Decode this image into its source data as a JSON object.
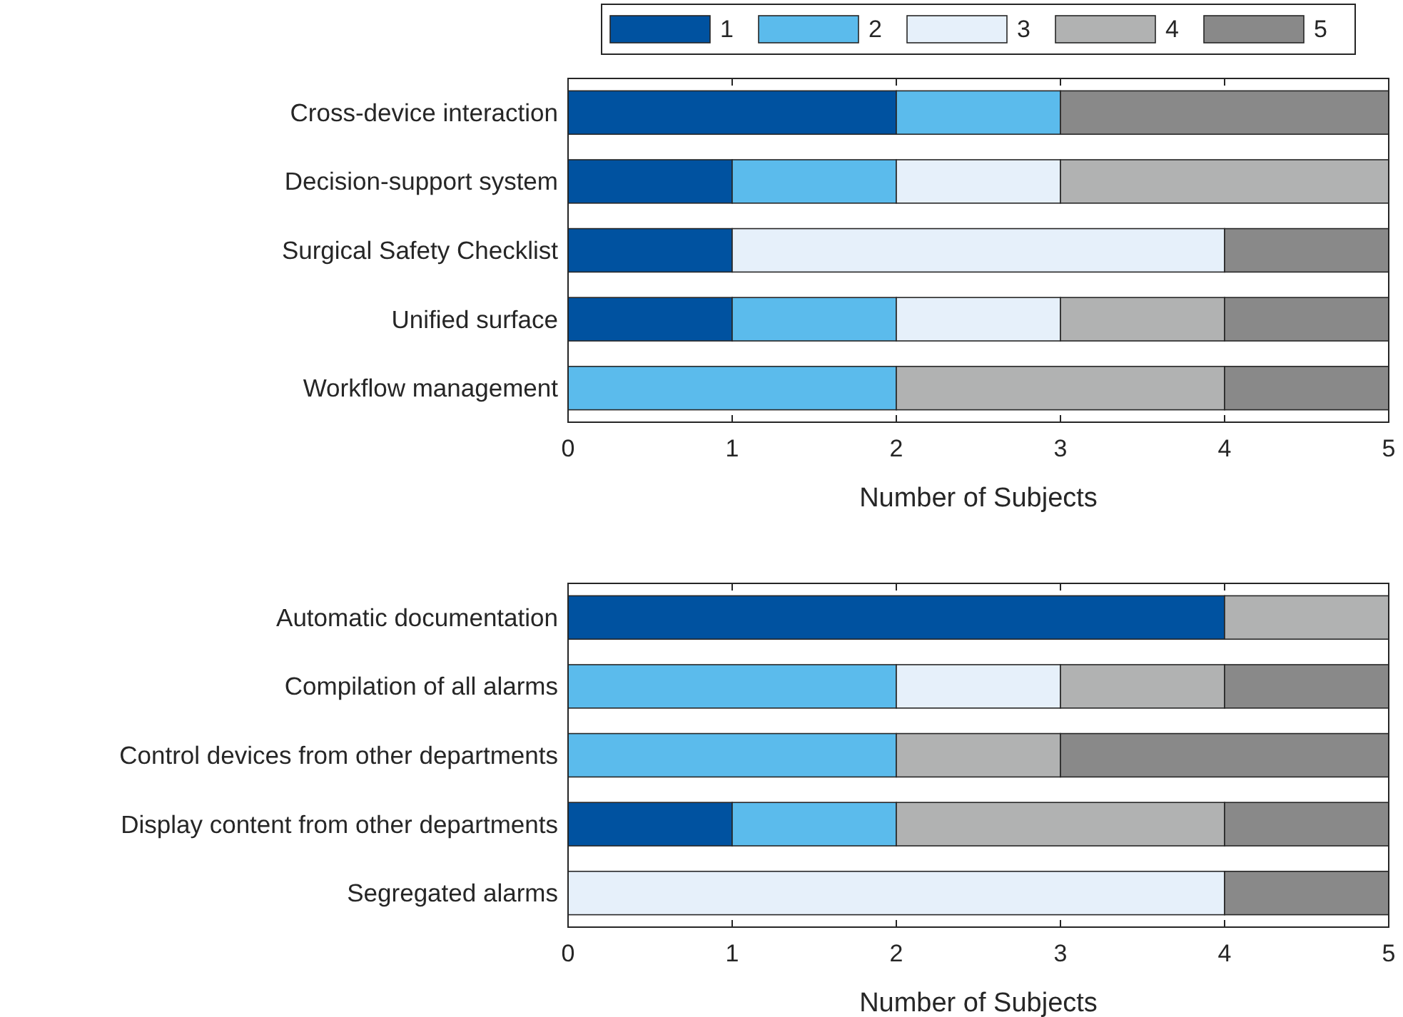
{
  "chart_data": [
    {
      "type": "bar",
      "orientation": "horizontal",
      "stacked": true,
      "legend": "top",
      "xlabel": "Number of Subjects",
      "xlim": [
        0,
        5
      ],
      "xticks": [
        0,
        1,
        2,
        3,
        4,
        5
      ],
      "categories": [
        "Cross-device interaction",
        "Decision-support system",
        "Surgical Safety Checklist",
        "Unified surface",
        "Workflow management"
      ],
      "series": [
        {
          "name": "1",
          "color": "#0052a0",
          "values": [
            2,
            1,
            1,
            1,
            0
          ]
        },
        {
          "name": "2",
          "color": "#5bbbec",
          "values": [
            1,
            1,
            0,
            1,
            2
          ]
        },
        {
          "name": "3",
          "color": "#e6f0fa",
          "values": [
            0,
            1,
            3,
            1,
            0
          ]
        },
        {
          "name": "4",
          "color": "#b1b2b2",
          "values": [
            0,
            2,
            0,
            1,
            2
          ]
        },
        {
          "name": "5",
          "color": "#898989",
          "values": [
            2,
            0,
            1,
            1,
            1
          ]
        }
      ]
    },
    {
      "type": "bar",
      "orientation": "horizontal",
      "stacked": true,
      "xlabel": "Number of Subjects",
      "xlim": [
        0,
        5
      ],
      "xticks": [
        0,
        1,
        2,
        3,
        4,
        5
      ],
      "categories": [
        "Automatic documentation",
        "Compilation of all alarms",
        "Control devices from other departments",
        "Display content from other departments",
        "Segregated alarms"
      ],
      "series": [
        {
          "color": "#0052a0",
          "values": [
            4,
            0,
            0,
            1,
            0
          ]
        },
        {
          "color": "#5bbbec",
          "values": [
            0,
            2,
            2,
            1,
            0
          ]
        },
        {
          "color": "#e6f0fa",
          "values": [
            0,
            1,
            0,
            0,
            4
          ]
        },
        {
          "color": "#b1b2b2",
          "values": [
            1,
            1,
            1,
            2,
            0
          ]
        },
        {
          "color": "#898989",
          "values": [
            0,
            1,
            2,
            1,
            1
          ]
        }
      ]
    }
  ]
}
